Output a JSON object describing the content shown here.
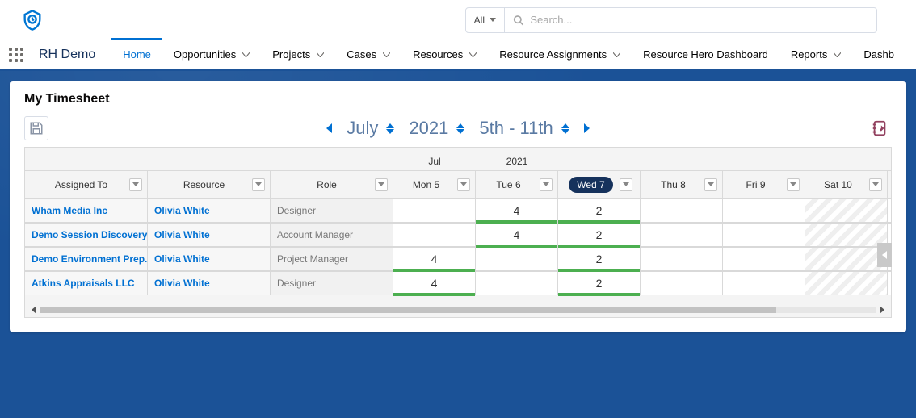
{
  "app": {
    "name": "RH Demo",
    "logo_color": "#0176d3"
  },
  "search": {
    "scope": "All",
    "placeholder": "Search..."
  },
  "nav": {
    "active": "Home",
    "tabs": [
      {
        "label": "Home",
        "has_dropdown": false
      },
      {
        "label": "Opportunities",
        "has_dropdown": true
      },
      {
        "label": "Projects",
        "has_dropdown": true
      },
      {
        "label": "Cases",
        "has_dropdown": true
      },
      {
        "label": "Resources",
        "has_dropdown": true
      },
      {
        "label": "Resource Assignments",
        "has_dropdown": true
      },
      {
        "label": "Resource Hero Dashboard",
        "has_dropdown": false
      },
      {
        "label": "Reports",
        "has_dropdown": true
      },
      {
        "label": "Dashb",
        "has_dropdown": false
      }
    ]
  },
  "page": {
    "title": "My Timesheet"
  },
  "period": {
    "month": "July",
    "year": "2021",
    "range": "5th - 11th",
    "super_month": "Jul",
    "super_year": "2021"
  },
  "grid": {
    "columns": {
      "assigned": "Assigned To",
      "resource": "Resource",
      "role": "Role",
      "days": [
        "Mon 5",
        "Tue 6",
        "Wed 7",
        "Thu 8",
        "Fri 9",
        "Sat 10"
      ]
    },
    "active_day_index": 2,
    "weekend_day_indices": [
      5
    ],
    "rows": [
      {
        "assigned": "Wham Media Inc",
        "resource": "Olivia White",
        "role": "Designer",
        "cells": [
          "",
          "4",
          "2",
          "",
          "",
          ""
        ]
      },
      {
        "assigned": "Demo Session Discovery",
        "resource": "Olivia White",
        "role": "Account Manager",
        "cells": [
          "",
          "4",
          "2",
          "",
          "",
          ""
        ]
      },
      {
        "assigned": "Demo Environment Prep...",
        "resource": "Olivia White",
        "role": "Project Manager",
        "cells": [
          "4",
          "",
          "2",
          "",
          "",
          ""
        ]
      },
      {
        "assigned": "Atkins Appraisals LLC",
        "resource": "Olivia White",
        "role": "Designer",
        "cells": [
          "4",
          "",
          "2",
          "",
          "",
          ""
        ]
      }
    ]
  },
  "colors": {
    "accent": "#0070d2",
    "nav_border": "#1b5297",
    "link": "#0070d2",
    "filled_bar": "#4caf50",
    "day_pill_bg": "#16325c",
    "muted": "#777777"
  }
}
